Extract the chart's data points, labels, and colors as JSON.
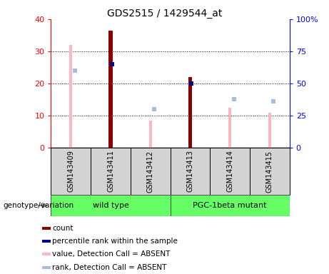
{
  "title": "GDS2515 / 1429544_at",
  "samples": [
    "GSM143409",
    "GSM143411",
    "GSM143412",
    "GSM143413",
    "GSM143414",
    "GSM143415"
  ],
  "count_values": [
    null,
    36.5,
    null,
    22,
    null,
    null
  ],
  "percentile_rank_pct": [
    null,
    65,
    null,
    50,
    null,
    null
  ],
  "value_absent_left": [
    32,
    null,
    8.5,
    null,
    12.5,
    11
  ],
  "rank_absent_pct": [
    60,
    null,
    30,
    null,
    38,
    36
  ],
  "left_ylim": [
    0,
    40
  ],
  "right_ylim": [
    0,
    100
  ],
  "left_yticks": [
    0,
    10,
    20,
    30,
    40
  ],
  "right_yticks": [
    0,
    25,
    50,
    75,
    100
  ],
  "right_yticklabels": [
    "0",
    "25",
    "50",
    "75",
    "100%"
  ],
  "color_count": "#8B0000",
  "color_percentile": "#00008B",
  "color_value_absent": "#FFB6C1",
  "color_rank_absent": "#AABBDD",
  "group_color": "#66FF66",
  "bg_color_sample": "#D3D3D3",
  "wt_label": "wild type",
  "pgc_label": "PGC-1beta mutant",
  "genotype_label": "genotype/variation",
  "legend_items": [
    [
      "#8B0000",
      "count"
    ],
    [
      "#00008B",
      "percentile rank within the sample"
    ],
    [
      "#FFB6C1",
      "value, Detection Call = ABSENT"
    ],
    [
      "#AABBDD",
      "rank, Detection Call = ABSENT"
    ]
  ]
}
